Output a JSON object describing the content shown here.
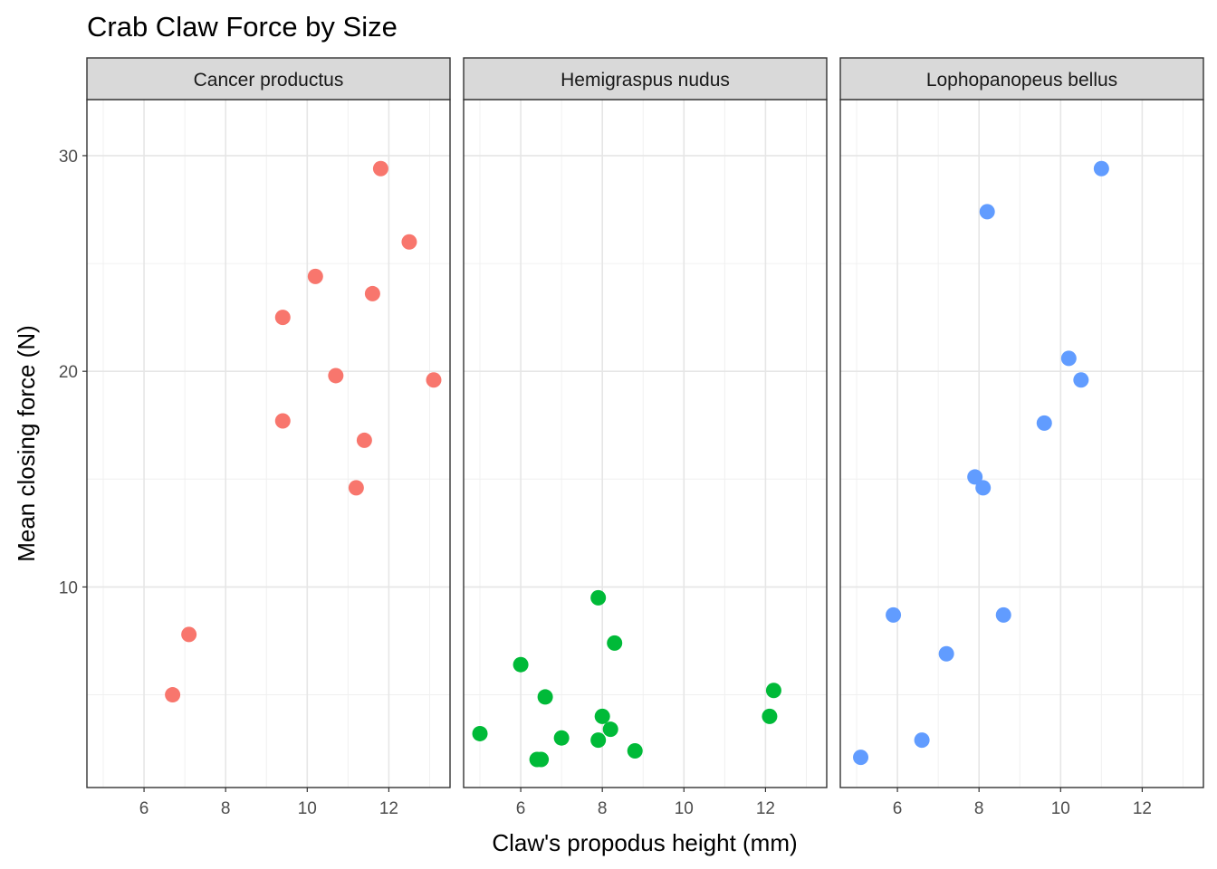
{
  "chart_data": {
    "type": "scatter",
    "title": "Crab Claw Force by Size",
    "xlabel": "Claw's propodus height (mm)",
    "ylabel": "Mean closing force (N)",
    "xlim": [
      4.6,
      13.5
    ],
    "ylim": [
      0.7,
      32.6
    ],
    "x_ticks": [
      6,
      8,
      10,
      12
    ],
    "y_ticks": [
      10,
      20,
      30
    ],
    "grid": true,
    "legend": "none",
    "facets": [
      {
        "name": "Cancer productus",
        "color": "#F8766D",
        "points": [
          {
            "x": 11.8,
            "y": 29.4
          },
          {
            "x": 12.5,
            "y": 26.0
          },
          {
            "x": 10.2,
            "y": 24.4
          },
          {
            "x": 11.6,
            "y": 23.6
          },
          {
            "x": 9.4,
            "y": 22.5
          },
          {
            "x": 10.7,
            "y": 19.8
          },
          {
            "x": 13.1,
            "y": 19.6
          },
          {
            "x": 9.4,
            "y": 17.7
          },
          {
            "x": 11.4,
            "y": 16.8
          },
          {
            "x": 11.2,
            "y": 14.6
          },
          {
            "x": 7.1,
            "y": 7.8
          },
          {
            "x": 6.7,
            "y": 5.0
          }
        ]
      },
      {
        "name": "Hemigraspus nudus",
        "color": "#00BA38",
        "points": [
          {
            "x": 7.9,
            "y": 9.5
          },
          {
            "x": 8.3,
            "y": 7.4
          },
          {
            "x": 6.0,
            "y": 6.4
          },
          {
            "x": 6.6,
            "y": 4.9
          },
          {
            "x": 12.2,
            "y": 5.2
          },
          {
            "x": 8.0,
            "y": 4.0
          },
          {
            "x": 12.1,
            "y": 4.0
          },
          {
            "x": 8.2,
            "y": 3.4
          },
          {
            "x": 5.0,
            "y": 3.2
          },
          {
            "x": 7.0,
            "y": 3.0
          },
          {
            "x": 7.9,
            "y": 2.9
          },
          {
            "x": 8.8,
            "y": 2.4
          },
          {
            "x": 6.4,
            "y": 2.0
          },
          {
            "x": 6.5,
            "y": 2.0
          }
        ]
      },
      {
        "name": "Lophopanopeus bellus",
        "color": "#619CFF",
        "points": [
          {
            "x": 11.0,
            "y": 29.4
          },
          {
            "x": 8.2,
            "y": 27.4
          },
          {
            "x": 10.2,
            "y": 20.6
          },
          {
            "x": 10.5,
            "y": 19.6
          },
          {
            "x": 9.6,
            "y": 17.6
          },
          {
            "x": 7.9,
            "y": 15.1
          },
          {
            "x": 8.1,
            "y": 14.6
          },
          {
            "x": 5.9,
            "y": 8.7
          },
          {
            "x": 8.6,
            "y": 8.7
          },
          {
            "x": 7.2,
            "y": 6.9
          },
          {
            "x": 6.6,
            "y": 2.9
          },
          {
            "x": 5.1,
            "y": 2.1
          }
        ]
      }
    ]
  }
}
